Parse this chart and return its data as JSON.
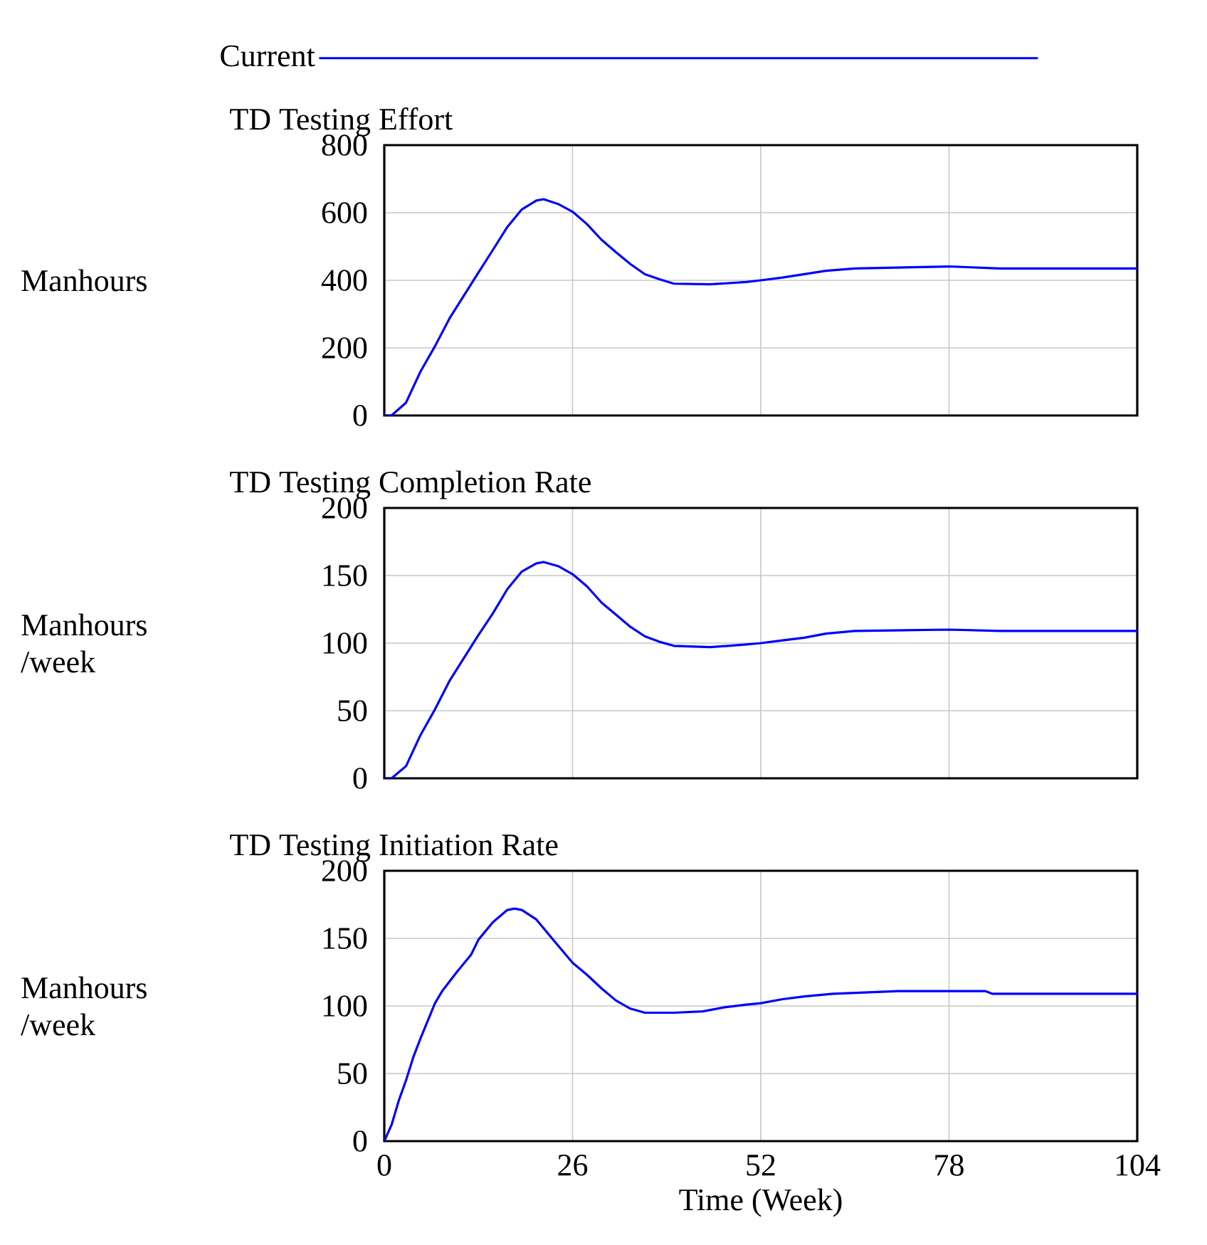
{
  "chart_data": [
    {
      "type": "line",
      "title": "TD Testing Effort",
      "ylabel": "Manhours",
      "xlim": [
        0,
        104
      ],
      "ylim": [
        0,
        800
      ],
      "xticks": [
        0,
        26,
        52,
        78,
        104
      ],
      "yticks": [
        0,
        200,
        400,
        600,
        800
      ],
      "grid": true,
      "legend": "top",
      "tick_labels": "y",
      "series": [
        {
          "name": "Current",
          "color": "#0000ff",
          "x": [
            0,
            1,
            3,
            5,
            7,
            9,
            11,
            13,
            15,
            17,
            19,
            21,
            22,
            24,
            26,
            28,
            30,
            32,
            34,
            36,
            38,
            40,
            45,
            50,
            52,
            55,
            58,
            61,
            65,
            78,
            85,
            104
          ],
          "values": [
            0,
            0,
            38,
            130,
            205,
            287,
            355,
            423,
            490,
            558,
            610,
            636,
            640,
            626,
            603,
            566,
            520,
            483,
            448,
            418,
            403,
            390,
            388,
            395,
            400,
            408,
            418,
            428,
            435,
            441,
            435,
            435
          ]
        }
      ]
    },
    {
      "type": "line",
      "title": "TD Testing Completion Rate",
      "ylabel": "Manhours /week",
      "xlim": [
        0,
        104
      ],
      "ylim": [
        0,
        200
      ],
      "xticks": [
        0,
        26,
        52,
        78,
        104
      ],
      "yticks": [
        0,
        50,
        100,
        150,
        200
      ],
      "grid": true,
      "tick_labels": "y",
      "series": [
        {
          "color": "#0000ff",
          "x": [
            0,
            1,
            3,
            5,
            7,
            9,
            11,
            13,
            15,
            17,
            19,
            21,
            22,
            24,
            26,
            28,
            30,
            32,
            34,
            36,
            38,
            40,
            45,
            50,
            52,
            55,
            58,
            61,
            65,
            78,
            85,
            104
          ],
          "values": [
            0,
            0,
            9,
            32,
            51,
            72,
            89,
            106,
            122,
            140,
            153,
            159,
            160,
            157,
            151,
            142,
            130,
            121,
            112,
            105,
            101,
            98,
            97,
            99,
            100,
            102,
            104,
            107,
            109,
            110,
            109,
            109
          ]
        }
      ]
    },
    {
      "type": "line",
      "title": "TD Testing Initiation Rate",
      "ylabel": "Manhours /week",
      "xlabel": "Time (Week)",
      "xlim": [
        0,
        104
      ],
      "ylim": [
        0,
        200
      ],
      "xticks": [
        0,
        26,
        52,
        78,
        104
      ],
      "yticks": [
        0,
        50,
        100,
        150,
        200
      ],
      "grid": true,
      "series": [
        {
          "color": "#0000ff",
          "x": [
            0,
            1,
            2,
            3,
            4,
            5,
            6,
            7,
            8,
            10,
            12,
            13,
            15,
            17,
            18,
            19,
            21,
            23,
            26,
            28,
            30,
            32,
            34,
            36,
            40,
            44,
            47,
            50,
            52,
            55,
            58,
            62,
            71,
            83,
            84,
            104
          ],
          "values": [
            0,
            12,
            30,
            45,
            62,
            76,
            89,
            102,
            111,
            125,
            138,
            149,
            162,
            171,
            172,
            171,
            164,
            151,
            132,
            123,
            113,
            104,
            98,
            95,
            95,
            96,
            99,
            101,
            102,
            105,
            107,
            109,
            111,
            111,
            109,
            109
          ]
        }
      ]
    }
  ]
}
